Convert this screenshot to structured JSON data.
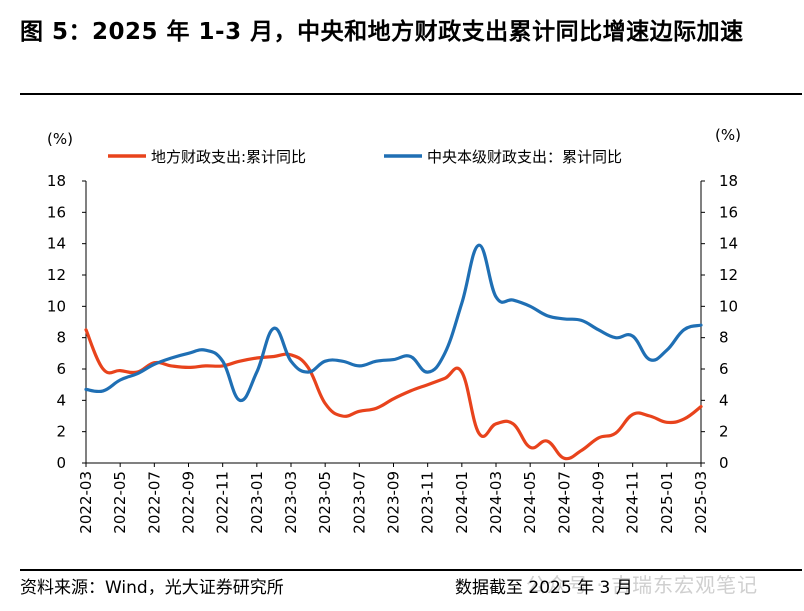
{
  "header": {
    "title": "图 5：2025 年 1-3 月，中央和地方财政支出累计同比增速边际加速"
  },
  "footer": {
    "source": "资料来源：Wind，光大证券研究所",
    "date_note": "数据截至 2025 年 3 月",
    "watermark": "公众号 · 吉瑞东宏观笔记"
  },
  "chart_data": {
    "type": "line",
    "title": "",
    "ylabel_left": "(%)",
    "ylabel_right": "(%)",
    "ylim": [
      0,
      18
    ],
    "yticks": [
      0,
      2,
      4,
      6,
      8,
      10,
      12,
      14,
      16,
      18
    ],
    "legend_position": "top",
    "x": [
      "2022-03",
      "2022-04",
      "2022-05",
      "2022-06",
      "2022-07",
      "2022-08",
      "2022-09",
      "2022-10",
      "2022-11",
      "2022-12",
      "2023-01",
      "2023-02",
      "2023-03",
      "2023-04",
      "2023-05",
      "2023-06",
      "2023-07",
      "2023-08",
      "2023-09",
      "2023-10",
      "2023-11",
      "2023-12",
      "2024-01",
      "2024-02",
      "2024-03",
      "2024-04",
      "2024-05",
      "2024-06",
      "2024-07",
      "2024-08",
      "2024-09",
      "2024-10",
      "2024-11",
      "2024-12",
      "2025-01",
      "2025-02",
      "2025-03"
    ],
    "xticks": [
      "2022-03",
      "2022-05",
      "2022-07",
      "2022-09",
      "2022-11",
      "2023-01",
      "2023-03",
      "2023-05",
      "2023-07",
      "2023-09",
      "2023-11",
      "2024-01",
      "2024-03",
      "2024-05",
      "2024-07",
      "2024-09",
      "2024-11",
      "2025-01",
      "2025-03"
    ],
    "series": [
      {
        "name": "地方财政支出:累计同比",
        "color": "#e8431c",
        "values": [
          8.5,
          6.0,
          5.9,
          5.8,
          6.4,
          6.2,
          6.1,
          6.2,
          6.2,
          6.5,
          6.7,
          6.8,
          6.9,
          6.1,
          3.8,
          3.0,
          3.3,
          3.5,
          4.1,
          4.6,
          5.0,
          5.4,
          5.8,
          1.9,
          2.5,
          2.5,
          1.0,
          1.4,
          0.3,
          0.8,
          1.6,
          1.9,
          3.1,
          3.0,
          2.6,
          2.8,
          3.6
        ]
      },
      {
        "name": "中央本级财政支出：累计同比",
        "color": "#1f6fb4",
        "values": [
          4.7,
          4.6,
          5.3,
          5.7,
          6.3,
          6.7,
          7.0,
          7.2,
          6.5,
          4.0,
          5.8,
          8.6,
          6.5,
          5.8,
          6.5,
          6.5,
          6.2,
          6.5,
          6.6,
          6.8,
          5.8,
          7.0,
          10.2,
          13.9,
          10.6,
          10.4,
          10.0,
          9.4,
          9.2,
          9.1,
          8.5,
          8.0,
          8.1,
          6.6,
          7.2,
          8.5,
          8.8
        ]
      }
    ]
  }
}
